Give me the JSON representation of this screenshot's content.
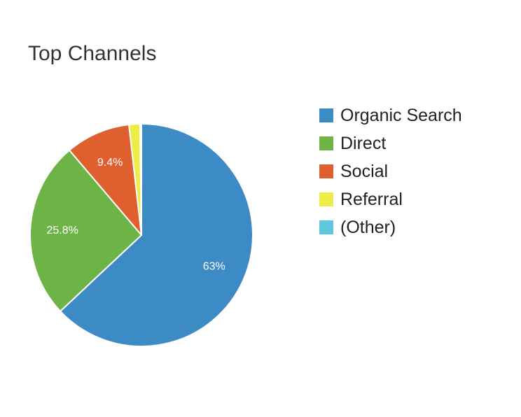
{
  "title": "Top Channels",
  "chart_data": {
    "type": "pie",
    "title": "Top Channels",
    "legend_position": "right",
    "slices": [
      {
        "label": "Organic Search",
        "value": 63.0,
        "display": "63%",
        "color": "#3d8bc4"
      },
      {
        "label": "Direct",
        "value": 25.8,
        "display": "25.8%",
        "color": "#6db447"
      },
      {
        "label": "Social",
        "value": 9.4,
        "display": "9.4%",
        "color": "#df5f2f"
      },
      {
        "label": "Referral",
        "value": 1.6,
        "display": "",
        "color": "#eded47"
      },
      {
        "label": "(Other)",
        "value": 0.2,
        "display": "",
        "color": "#5fc7dc"
      }
    ]
  }
}
